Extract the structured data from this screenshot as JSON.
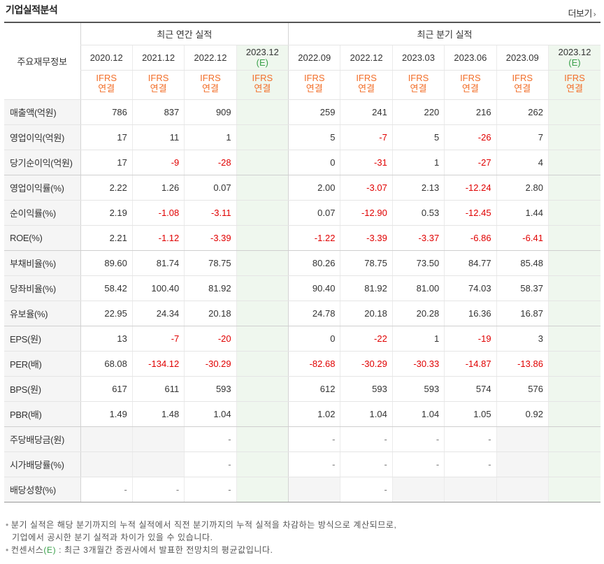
{
  "section": {
    "title": "기업실적분석",
    "more_label": "더보기"
  },
  "headers": {
    "main_label": "주요재무정보",
    "annual_group": "최근 연간 실적",
    "quarter_group": "최근 분기 실적",
    "annual_periods": [
      "2020.12",
      "2021.12",
      "2022.12"
    ],
    "annual_estimate": {
      "period": "2023.12",
      "mark": "(E)"
    },
    "quarter_periods": [
      "2022.09",
      "2022.12",
      "2023.03",
      "2023.06",
      "2023.09"
    ],
    "quarter_estimate": {
      "period": "2023.12",
      "mark": "(E)"
    },
    "ifrs": "IFRS",
    "consolidated": "연결"
  },
  "rows": [
    {
      "label": "매출액(억원)",
      "annual": [
        "786",
        "837",
        "909"
      ],
      "quarter": [
        "259",
        "241",
        "220",
        "216",
        "262"
      ]
    },
    {
      "label": "영업이익(억원)",
      "annual": [
        "17",
        "11",
        "1"
      ],
      "quarter": [
        "5",
        "-7",
        "5",
        "-26",
        "7"
      ]
    },
    {
      "label": "당기순이익(억원)",
      "annual": [
        "17",
        "-9",
        "-28"
      ],
      "quarter": [
        "0",
        "-31",
        "1",
        "-27",
        "4"
      ]
    },
    {
      "label": "영업이익률(%)",
      "annual": [
        "2.22",
        "1.26",
        "0.07"
      ],
      "quarter": [
        "2.00",
        "-3.07",
        "2.13",
        "-12.24",
        "2.80"
      ]
    },
    {
      "label": "순이익률(%)",
      "annual": [
        "2.19",
        "-1.08",
        "-3.11"
      ],
      "quarter": [
        "0.07",
        "-12.90",
        "0.53",
        "-12.45",
        "1.44"
      ]
    },
    {
      "label": "ROE(%)",
      "annual": [
        "2.21",
        "-1.12",
        "-3.39"
      ],
      "quarter": [
        "-1.22",
        "-3.39",
        "-3.37",
        "-6.86",
        "-6.41"
      ]
    },
    {
      "label": "부채비율(%)",
      "annual": [
        "89.60",
        "81.74",
        "78.75"
      ],
      "quarter": [
        "80.26",
        "78.75",
        "73.50",
        "84.77",
        "85.48"
      ]
    },
    {
      "label": "당좌비율(%)",
      "annual": [
        "58.42",
        "100.40",
        "81.92"
      ],
      "quarter": [
        "90.40",
        "81.92",
        "81.00",
        "74.03",
        "58.37"
      ]
    },
    {
      "label": "유보율(%)",
      "annual": [
        "22.95",
        "24.34",
        "20.18"
      ],
      "quarter": [
        "24.78",
        "20.18",
        "20.28",
        "16.36",
        "16.87"
      ]
    },
    {
      "label": "EPS(원)",
      "annual": [
        "13",
        "-7",
        "-20"
      ],
      "quarter": [
        "0",
        "-22",
        "1",
        "-19",
        "3"
      ]
    },
    {
      "label": "PER(배)",
      "annual": [
        "68.08",
        "-134.12",
        "-30.29"
      ],
      "quarter": [
        "-82.68",
        "-30.29",
        "-30.33",
        "-14.87",
        "-13.86"
      ]
    },
    {
      "label": "BPS(원)",
      "annual": [
        "617",
        "611",
        "593"
      ],
      "quarter": [
        "612",
        "593",
        "593",
        "574",
        "576"
      ]
    },
    {
      "label": "PBR(배)",
      "annual": [
        "1.49",
        "1.48",
        "1.04"
      ],
      "quarter": [
        "1.02",
        "1.04",
        "1.04",
        "1.05",
        "0.92"
      ]
    },
    {
      "label": "주당배당금(원)",
      "annual": [
        "",
        "",
        "-"
      ],
      "quarter": [
        "-",
        "-",
        "-",
        "-",
        ""
      ]
    },
    {
      "label": "시가배당률(%)",
      "annual": [
        "",
        "",
        "-"
      ],
      "quarter": [
        "-",
        "-",
        "-",
        "-",
        ""
      ]
    },
    {
      "label": "배당성향(%)",
      "annual": [
        "-",
        "-",
        "-"
      ],
      "quarter": [
        "",
        "-",
        "",
        "",
        ""
      ]
    }
  ],
  "notes": {
    "line1": "분기 실적은 해당 분기까지의 누적 실적에서 직전 분기까지의 누적 실적을 차감하는 방식으로 계산되므로,",
    "line2": "기업에서 공시한 분기 실적과 차이가 있을 수 있습니다.",
    "line3_prefix": "컨센서스",
    "line3_mark": "(E)",
    "line3_suffix": " : 최근 3개월간 증권사에서 발표한 전망치의 평균값입니다."
  },
  "colors": {
    "negative": "#e00000",
    "ifrs": "#f26f2a",
    "estimate_bg": "#eff7ee",
    "estimate_mark": "#3aa04a"
  }
}
